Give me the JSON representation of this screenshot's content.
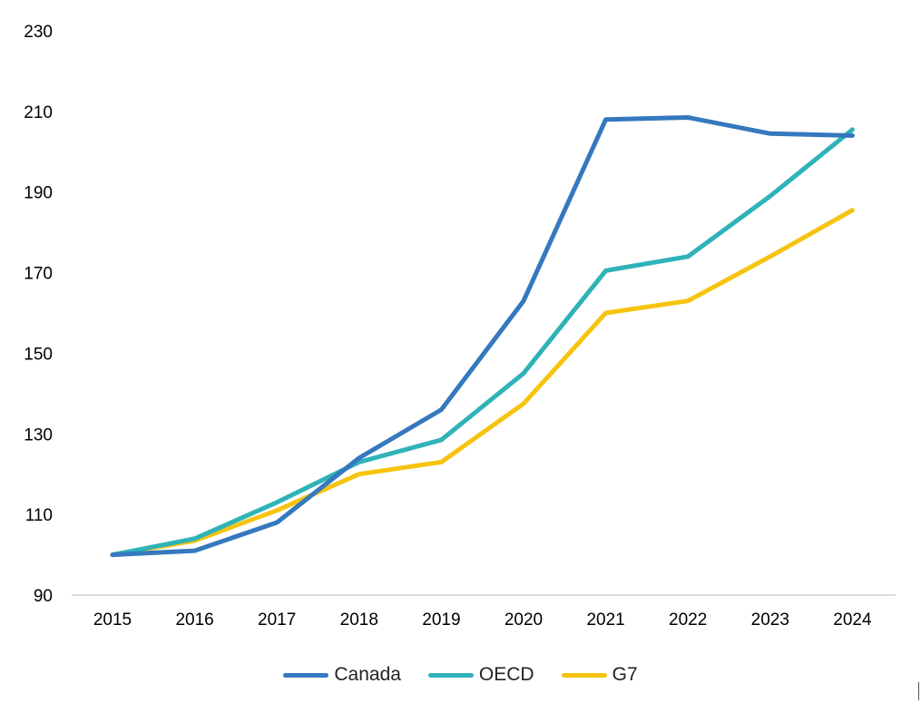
{
  "chart_data": {
    "type": "line",
    "title": "",
    "xlabel": "",
    "ylabel": "",
    "x": [
      "2015",
      "2016",
      "2017",
      "2018",
      "2019",
      "2020",
      "2021",
      "2022",
      "2023",
      "2024"
    ],
    "ylim": [
      90,
      230
    ],
    "yticks": [
      90,
      110,
      130,
      150,
      170,
      190,
      210,
      230
    ],
    "grid": false,
    "legend_position": "bottom",
    "series": [
      {
        "name": "Canada",
        "color": "#3578be",
        "values": [
          100,
          101,
          108,
          124,
          136,
          163,
          208,
          208.5,
          204.5,
          204
        ]
      },
      {
        "name": "OECD",
        "color": "#2eb3b9",
        "values": [
          100,
          104,
          113,
          123,
          128.5,
          145,
          170.5,
          174,
          189,
          205.5
        ]
      },
      {
        "name": "G7",
        "color": "#f6c40f",
        "values": [
          100,
          103.5,
          111,
          120,
          123,
          137.5,
          160,
          163,
          174,
          185.5
        ]
      }
    ]
  }
}
